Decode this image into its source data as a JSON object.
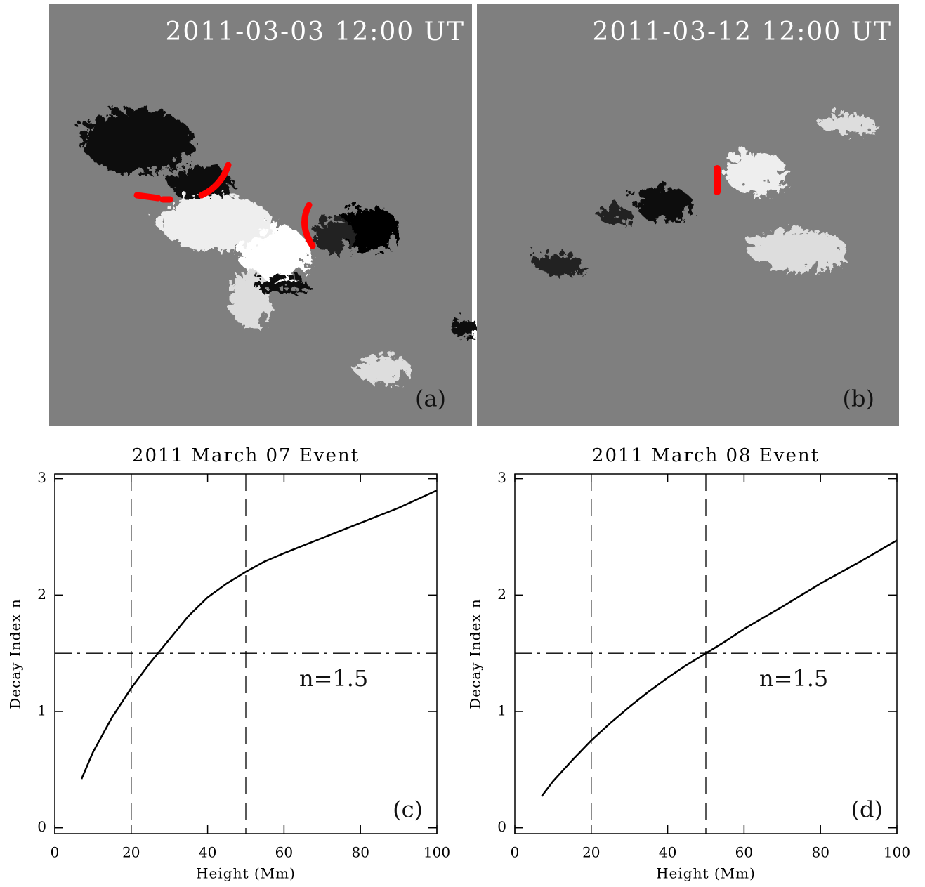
{
  "images": [
    {
      "timestamp": "2011-03-03 12:00 UT",
      "label": "(a)"
    },
    {
      "timestamp": "2011-03-12 12:00 UT",
      "label": "(b)"
    }
  ],
  "chart_data": [
    {
      "type": "line",
      "title": "2011 March 07 Event",
      "x_label": "Height (Mm)",
      "y_label": "Decay Index n",
      "x": [
        7,
        10,
        15,
        20,
        25,
        27,
        30,
        35,
        40,
        45,
        50,
        55,
        60,
        70,
        80,
        90,
        100
      ],
      "values": [
        0.42,
        0.65,
        0.95,
        1.2,
        1.42,
        1.5,
        1.62,
        1.82,
        1.98,
        2.1,
        2.2,
        2.29,
        2.36,
        2.49,
        2.62,
        2.75,
        2.9
      ],
      "color": "#000000",
      "xlim": [
        0,
        100
      ],
      "ylim": [
        -0.05,
        3.04
      ],
      "xticks": [
        0,
        20,
        40,
        60,
        80,
        100
      ],
      "yticks": [
        0,
        1,
        2,
        3
      ],
      "vlines": [
        20,
        50
      ],
      "hline": 1.5,
      "annotation": "n=1.5",
      "panel_label": "(c)"
    },
    {
      "type": "line",
      "title": "2011 March 08 Event",
      "x_label": "Height (Mm)",
      "y_label": "Decay Index n",
      "x": [
        7,
        10,
        15,
        20,
        25,
        30,
        35,
        40,
        45,
        50,
        55,
        60,
        70,
        80,
        90,
        100
      ],
      "values": [
        0.27,
        0.4,
        0.58,
        0.75,
        0.9,
        1.04,
        1.17,
        1.29,
        1.4,
        1.5,
        1.6,
        1.71,
        1.9,
        2.1,
        2.28,
        2.47
      ],
      "color": "#000000",
      "xlim": [
        0,
        100
      ],
      "ylim": [
        -0.05,
        3.04
      ],
      "xticks": [
        0,
        20,
        40,
        60,
        80,
        100
      ],
      "yticks": [
        0,
        1,
        2,
        3
      ],
      "vlines": [
        20,
        50
      ],
      "hline": 1.5,
      "annotation": "n=1.5",
      "panel_label": "(d)"
    }
  ]
}
